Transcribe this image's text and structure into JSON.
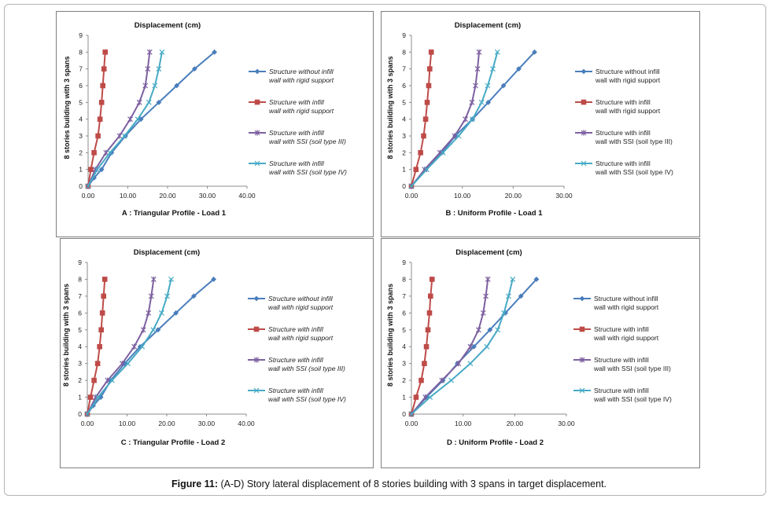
{
  "caption": {
    "label": "Figure 11:",
    "text": "(A-D) Story lateral displacement of 8 stories building with 3 spans in target displacement."
  },
  "colors": {
    "series1": "#4a7ebb",
    "series2": "#be4b48",
    "series3": "#7d60a0",
    "series4": "#46aac5"
  },
  "chart_data": [
    {
      "type": "line",
      "title": "Displacement (cm)",
      "xlabel": "A : Triangular Profile - Load 1",
      "ylabel": "8 stories building  with 3 spans",
      "xlim": [
        0,
        40
      ],
      "ylim": [
        0,
        9
      ],
      "xticks": [
        "0.00",
        "10.00",
        "20.00",
        "30.00",
        "40.00"
      ],
      "yticks": [
        "0",
        "1",
        "2",
        "3",
        "4",
        "5",
        "6",
        "7",
        "8",
        "9"
      ],
      "legend_position": "right",
      "series": [
        {
          "name": "Structure without infill wall with rigid support",
          "x": [
            0,
            1.5,
            3.4,
            5.9,
            9.4,
            13.3,
            17.8,
            22.3,
            26.8,
            31.8
          ],
          "y": [
            0,
            0.5,
            1,
            2,
            3,
            4,
            5,
            6,
            7,
            8
          ]
        },
        {
          "name": "Structure with infill wall with rigid support",
          "x": [
            0,
            0.7,
            1.5,
            2.5,
            3.0,
            3.4,
            3.7,
            4.0,
            4.3
          ],
          "y": [
            0,
            1,
            2,
            3,
            4,
            5,
            6,
            7,
            8
          ]
        },
        {
          "name": "Structure with infill wall with SSI (soil type III)",
          "x": [
            0,
            1.8,
            4.5,
            7.9,
            10.6,
            12.9,
            14.4,
            15.0,
            15.5
          ],
          "y": [
            0,
            1,
            2,
            3,
            4,
            5,
            6,
            7,
            8
          ]
        },
        {
          "name": "Structure with infill wall with SSI (soil type IV)",
          "x": [
            0,
            2.3,
            5.5,
            9.2,
            12.5,
            15.3,
            16.8,
            17.8,
            18.6
          ],
          "y": [
            0,
            1,
            2,
            3,
            4,
            5,
            6,
            7,
            8
          ]
        }
      ]
    },
    {
      "type": "line",
      "title": "Displacement (cm)",
      "xlabel": "B : Uniform Profile - Load 1",
      "ylabel": "8 stories building  with 3 spans",
      "xlim": [
        0,
        30
      ],
      "ylim": [
        0,
        9
      ],
      "xticks": [
        "0.00",
        "10.00",
        "20.00",
        "30.00"
      ],
      "yticks": [
        "0",
        "1",
        "2",
        "3",
        "4",
        "5",
        "6",
        "7",
        "8",
        "9"
      ],
      "legend_position": "right",
      "series": [
        {
          "name": "Structure without infill wall with rigid support",
          "x": [
            0,
            2.8,
            6.0,
            8.6,
            12.0,
            15.1,
            18.1,
            21.1,
            24.2
          ],
          "y": [
            0,
            1,
            2,
            3,
            4,
            5,
            6,
            7,
            8
          ]
        },
        {
          "name": "Structure with infill wall with rigid support",
          "x": [
            0,
            0.9,
            1.8,
            2.4,
            2.8,
            3.1,
            3.4,
            3.6,
            3.9
          ],
          "y": [
            0,
            1,
            2,
            3,
            4,
            5,
            6,
            7,
            8
          ]
        },
        {
          "name": "Structure with infill wall with SSI (soil type III)",
          "x": [
            0,
            2.6,
            5.6,
            8.5,
            10.6,
            11.9,
            12.6,
            13.0,
            13.3
          ],
          "y": [
            0,
            1,
            2,
            3,
            4,
            5,
            6,
            7,
            8
          ]
        },
        {
          "name": "Structure with infill wall with SSI (soil type IV)",
          "x": [
            0,
            3.0,
            6.2,
            9.3,
            12.0,
            13.8,
            15.0,
            16.0,
            16.9
          ],
          "y": [
            0,
            1,
            2,
            3,
            4,
            5,
            6,
            7,
            8
          ]
        }
      ]
    },
    {
      "type": "line",
      "title": "Displacement (cm)",
      "xlabel": "C : Triangular Profile - Load 2",
      "ylabel": "8 stories building  with 3 spans",
      "xlim": [
        0,
        40
      ],
      "ylim": [
        0,
        9
      ],
      "xticks": [
        "0.00",
        "10.00",
        "20.00",
        "30.00",
        "40.00"
      ],
      "yticks": [
        "0",
        "1",
        "2",
        "3",
        "4",
        "5",
        "6",
        "7",
        "8",
        "9"
      ],
      "legend_position": "right",
      "series": [
        {
          "name": "Structure without infill wall with rigid support",
          "x": [
            0,
            1.5,
            3.4,
            5.9,
            9.4,
            13.3,
            17.8,
            22.3,
            26.8,
            31.8
          ],
          "y": [
            0,
            0.5,
            1,
            2,
            3,
            4,
            5,
            6,
            7,
            8
          ]
        },
        {
          "name": "Structure with infill wall with rigid support",
          "x": [
            0,
            0.8,
            1.7,
            2.6,
            3.1,
            3.5,
            3.8,
            4.1,
            4.4
          ],
          "y": [
            0,
            1,
            2,
            3,
            4,
            5,
            6,
            7,
            8
          ]
        },
        {
          "name": "Structure with infill wall with SSI (soil type III)",
          "x": [
            0,
            2.1,
            5.1,
            8.8,
            11.8,
            14.1,
            15.4,
            16.1,
            16.7
          ],
          "y": [
            0,
            1,
            2,
            3,
            4,
            5,
            6,
            7,
            8
          ]
        },
        {
          "name": "Structure with infill wall with SSI (soil type IV)",
          "x": [
            0,
            2.7,
            6.2,
            10.2,
            13.8,
            16.6,
            18.7,
            20.1,
            21.1
          ],
          "y": [
            0,
            1,
            2,
            3,
            4,
            5,
            6,
            7,
            8
          ]
        }
      ]
    },
    {
      "type": "line",
      "title": "Displacement (cm)",
      "xlabel": "D : Uniform Profile - Load 2",
      "ylabel": "8 stories building  with 3 spans",
      "xlim": [
        0,
        30
      ],
      "ylim": [
        0,
        9
      ],
      "xticks": [
        "0.00",
        "10.00",
        "20.00",
        "30.00"
      ],
      "yticks": [
        "0",
        "1",
        "2",
        "3",
        "4",
        "5",
        "6",
        "7",
        "8",
        "9"
      ],
      "legend_position": "right",
      "series": [
        {
          "name": "Structure without infill wall with rigid support",
          "x": [
            0,
            2.9,
            6.1,
            8.9,
            12.1,
            15.2,
            18.2,
            21.2,
            24.2
          ],
          "y": [
            0,
            1,
            2,
            3,
            4,
            5,
            6,
            7,
            8
          ]
        },
        {
          "name": "Structure with infill wall with rigid support",
          "x": [
            0,
            0.9,
            1.9,
            2.5,
            2.9,
            3.2,
            3.5,
            3.7,
            4.0
          ],
          "y": [
            0,
            1,
            2,
            3,
            4,
            5,
            6,
            7,
            8
          ]
        },
        {
          "name": "Structure with infill wall with SSI (soil type III)",
          "x": [
            0,
            2.7,
            5.9,
            9.1,
            11.4,
            13.0,
            13.9,
            14.4,
            14.8
          ],
          "y": [
            0,
            1,
            2,
            3,
            4,
            5,
            6,
            7,
            8
          ]
        },
        {
          "name": "Structure with infill wall with SSI (soil type IV)",
          "x": [
            0,
            3.6,
            7.7,
            11.4,
            14.6,
            16.7,
            17.9,
            18.8,
            19.6
          ],
          "y": [
            0,
            1,
            2,
            3,
            4,
            5,
            6,
            7,
            8
          ]
        }
      ]
    }
  ]
}
